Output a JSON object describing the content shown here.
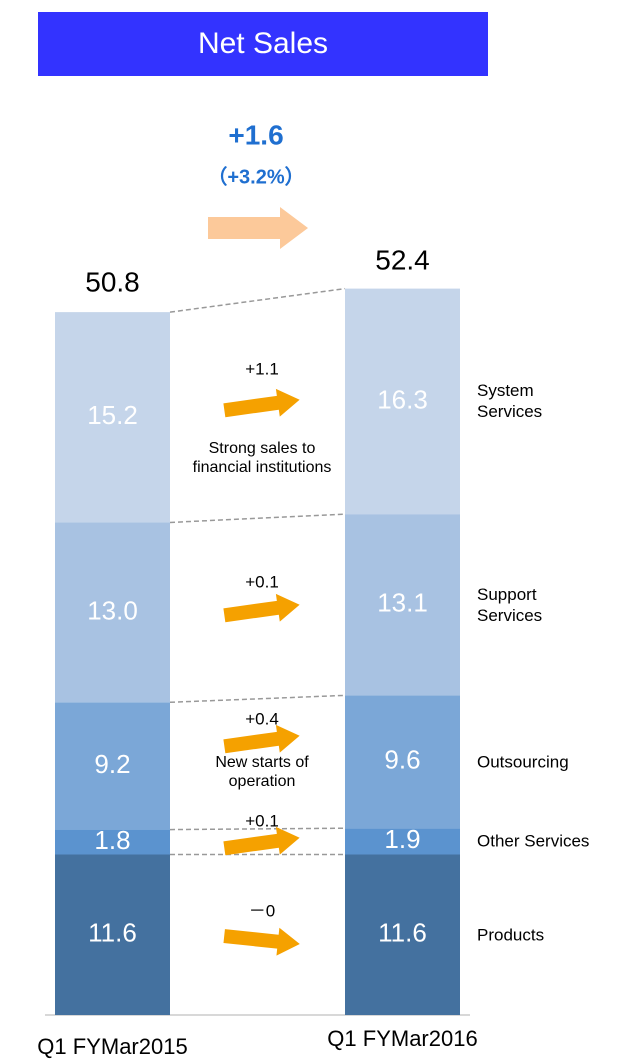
{
  "chart_data": {
    "type": "stacked_bar",
    "title": "Net Sales",
    "total_change": "+1.6",
    "total_change_pct": "（+3.2%）",
    "categories": [
      "Q1 FYMar2015",
      "Q1 FYMar2016"
    ],
    "totals": [
      50.8,
      52.4
    ],
    "series": [
      {
        "name": "Products",
        "color": "#44719f",
        "values": [
          11.6,
          11.6
        ],
        "change": "－0"
      },
      {
        "name": "Other Services",
        "color": "#5b93cf",
        "values": [
          1.8,
          1.9
        ],
        "change": "+0.1"
      },
      {
        "name": "Outsourcing",
        "color": "#7ba7d7",
        "values": [
          9.2,
          9.6
        ],
        "change": "+0.4",
        "note": "New starts of operation"
      },
      {
        "name": "Support Services",
        "color": "#a8c2e2",
        "values": [
          13,
          13.1
        ],
        "value_labels": [
          "13.0",
          "13.1"
        ],
        "change": "+0.1"
      },
      {
        "name": "System Services",
        "color": "#c5d5ea",
        "values": [
          15.2,
          16.3
        ],
        "change": "+1.1",
        "note": "Strong sales to financial institutions"
      }
    ]
  }
}
